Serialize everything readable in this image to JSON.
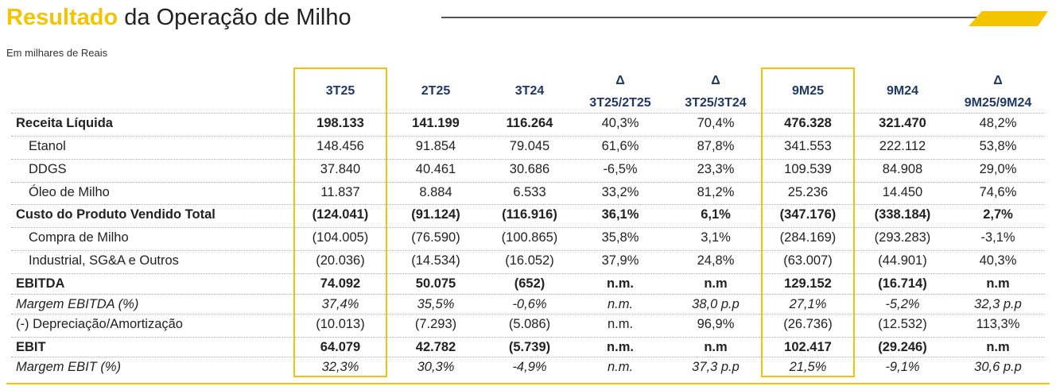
{
  "header": {
    "title_highlight": "Resultado",
    "title_rest": "da Operação de Milho",
    "subtitle": "Em milhares de Reais"
  },
  "table": {
    "columns": [
      [
        "3T25"
      ],
      [
        "2T25"
      ],
      [
        "3T24"
      ],
      [
        "Δ",
        "3T25/2T25"
      ],
      [
        "Δ",
        "3T25/3T24"
      ],
      [
        "9M25"
      ],
      [
        "9M24"
      ],
      [
        "Δ",
        "9M25/9M24"
      ]
    ],
    "highlight_columns": [
      0,
      5
    ],
    "rows": [
      {
        "label": "Receita Líquida",
        "style": "bold",
        "values": [
          "198.133",
          "141.199",
          "116.264",
          "40,3%",
          "70,4%",
          "476.328",
          "321.470",
          "48,2%"
        ]
      },
      {
        "label": "Etanol",
        "style": "indent",
        "values": [
          "148.456",
          "91.854",
          "79.045",
          "61,6%",
          "87,8%",
          "341.553",
          "222.112",
          "53,8%"
        ]
      },
      {
        "label": "DDGS",
        "style": "indent",
        "values": [
          "37.840",
          "40.461",
          "30.686",
          "-6,5%",
          "23,3%",
          "109.539",
          "84.908",
          "29,0%"
        ]
      },
      {
        "label": "Óleo de Milho",
        "style": "indent",
        "values": [
          "11.837",
          "8.884",
          "6.533",
          "33,2%",
          "81,2%",
          "25.236",
          "14.450",
          "74,6%"
        ]
      },
      {
        "label": "Custo do Produto Vendido Total",
        "style": "bold",
        "values": [
          "(124.041)",
          "(91.124)",
          "(116.916)",
          "36,1%",
          "6,1%",
          "(347.176)",
          "(338.184)",
          "2,7%"
        ]
      },
      {
        "label": "Compra de Milho",
        "style": "indent",
        "values": [
          "(104.005)",
          "(76.590)",
          "(100.865)",
          "35,8%",
          "3,1%",
          "(284.169)",
          "(293.283)",
          "-3,1%"
        ]
      },
      {
        "label": "Industrial, SG&A e Outros",
        "style": "indent",
        "values": [
          "(20.036)",
          "(14.534)",
          "(16.052)",
          "37,9%",
          "24,8%",
          "(63.007)",
          "(44.901)",
          "40,3%"
        ]
      },
      {
        "label": "EBITDA",
        "style": "bold",
        "values": [
          "74.092",
          "50.075",
          "(652)",
          "n.m.",
          "n.m",
          "129.152",
          "(16.714)",
          "n.m"
        ]
      },
      {
        "label": "Margem EBITDA (%)",
        "style": "italic",
        "values": [
          "37,4%",
          "35,5%",
          "-0,6%",
          "n.m.",
          "38,0 p.p",
          "27,1%",
          "-5,2%",
          "32,3 p.p"
        ]
      },
      {
        "label": "(-) Depreciação/Amortização",
        "style": "plain",
        "values": [
          "(10.013)",
          "(7.293)",
          "(5.086)",
          "n.m.",
          "96,9%",
          "(26.736)",
          "(12.532)",
          "113,3%"
        ]
      },
      {
        "label": "EBIT",
        "style": "bold",
        "values": [
          "64.079",
          "42.782",
          "(5.739)",
          "n.m.",
          "n.m",
          "102.417",
          "(29.246)",
          "n.m"
        ]
      },
      {
        "label": "Margem EBIT (%)",
        "style": "italic",
        "values": [
          "32,3%",
          "30,3%",
          "-4,9%",
          "n.m.",
          "37,3 p.p",
          "21,5%",
          "-9,1%",
          "30,6 p.p"
        ]
      }
    ]
  }
}
